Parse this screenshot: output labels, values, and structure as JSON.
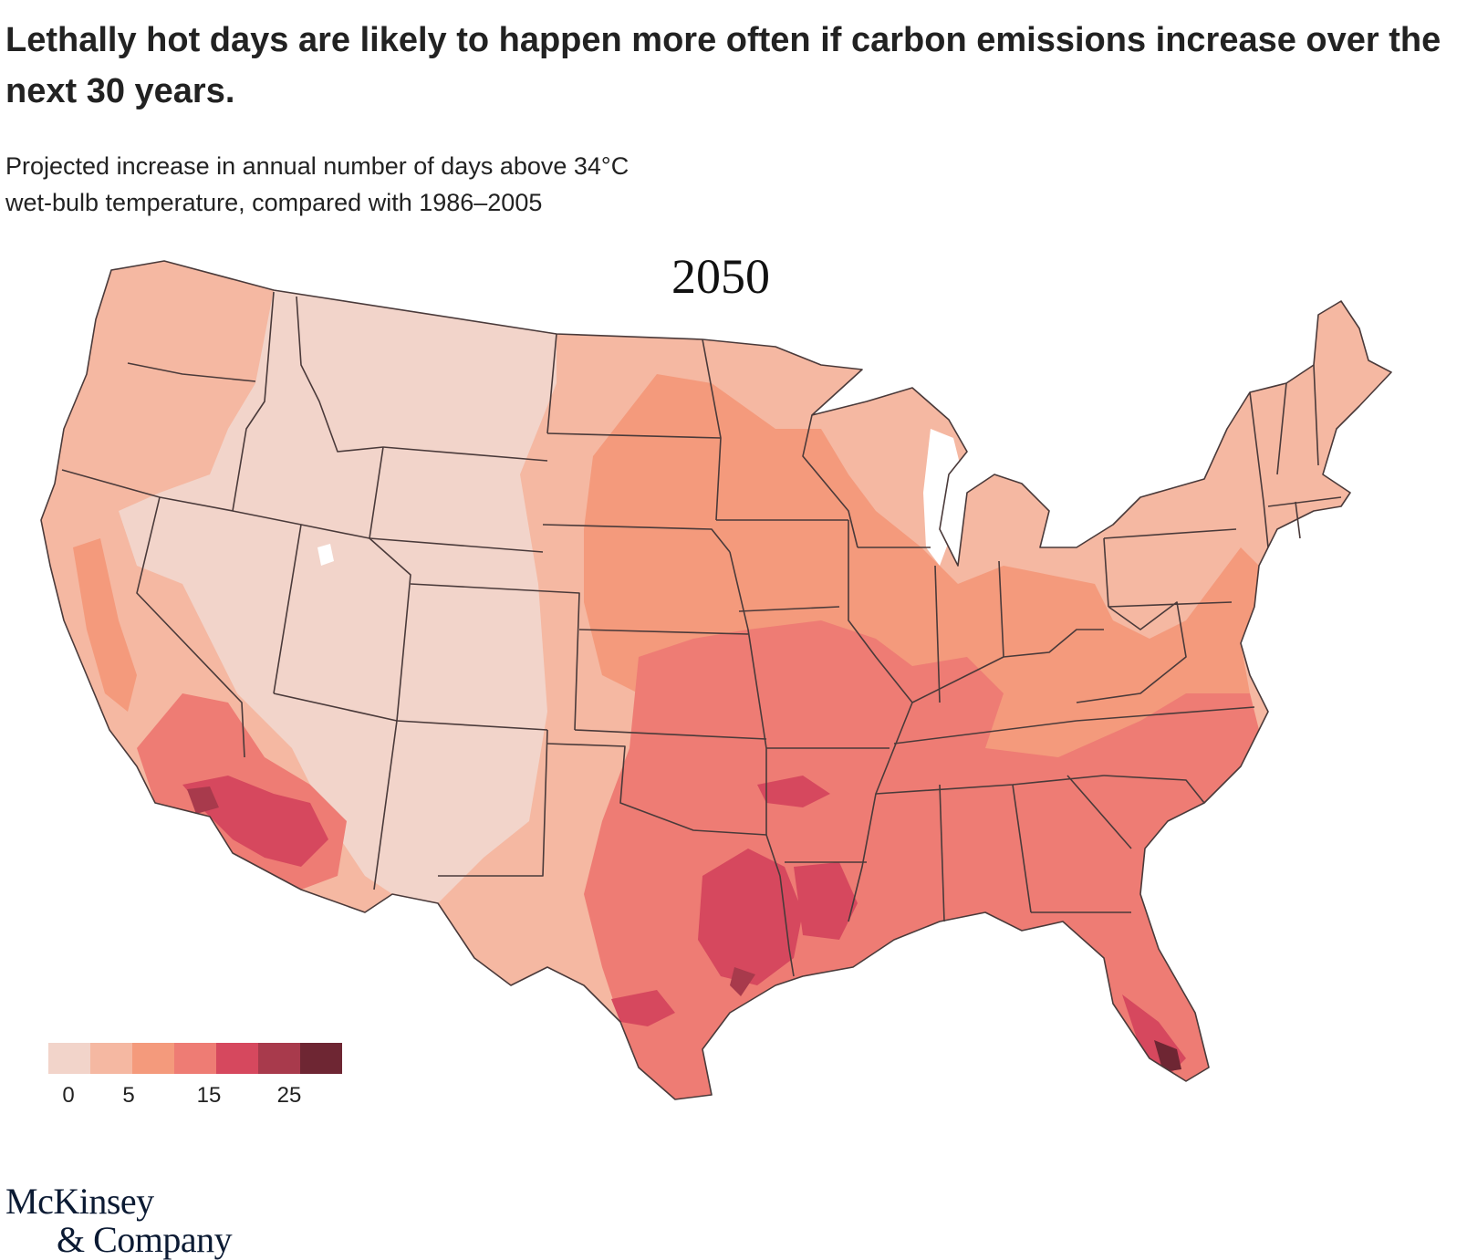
{
  "header": {
    "title": "Lethally hot days are likely to happen more often if carbon emissions increase over the next 30 years.",
    "subtitle_line1": "Projected increase in annual number of days above 34°C",
    "subtitle_line2": "wet-bulb temperature, compared with 1986–2005"
  },
  "map": {
    "year_label": "2050",
    "region": "Contiguous United States",
    "colors": {
      "border": "#4a3a3a",
      "bin0": "#f2d4ca",
      "bin1": "#f5b8a2",
      "bin2": "#f49a7c",
      "bin3": "#ee7c74",
      "bin4": "#d6485e",
      "bin5": "#a83a4c",
      "bin6": "#6e2633"
    }
  },
  "legend": {
    "colors": [
      "#f2d4ca",
      "#f5b8a2",
      "#f49a7c",
      "#ee7c74",
      "#d6485e",
      "#a83a4c",
      "#6e2633"
    ],
    "ticks": [
      {
        "label": "0",
        "bin_edge": 0.5
      },
      {
        "label": "5",
        "bin_edge": 2
      },
      {
        "label": "15",
        "bin_edge": 4
      },
      {
        "label": "25",
        "bin_edge": 6
      }
    ]
  },
  "logo": {
    "line1": "McKinsey",
    "line2": "& Company"
  }
}
